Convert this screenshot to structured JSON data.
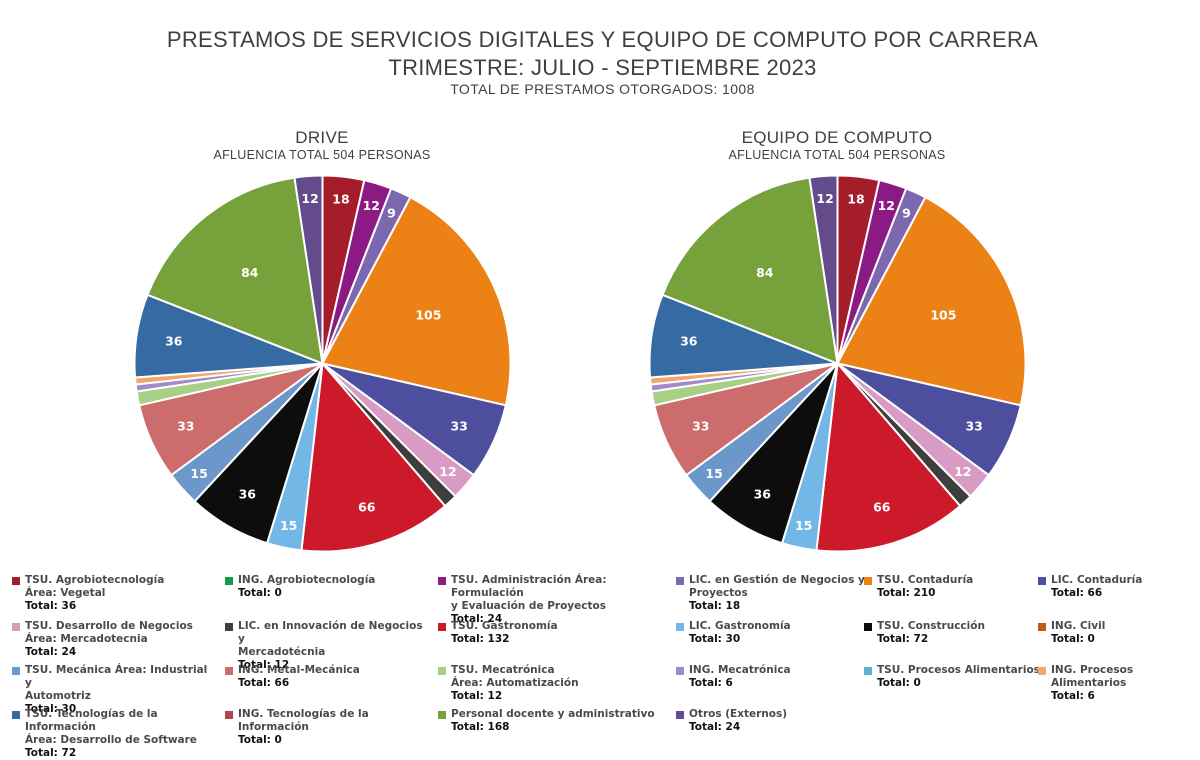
{
  "title": {
    "line1": "PRESTAMOS DE SERVICIOS DIGITALES Y EQUIPO DE COMPUTO POR CARRERA",
    "line2": "TRIMESTRE: JULIO - SEPTIEMBRE 2023",
    "line3": "TOTAL DE PRESTAMOS OTORGADOS: 1008"
  },
  "chart_data": [
    {
      "type": "pie",
      "title": "DRIVE",
      "subtitle": "AFLUENCIA TOTAL 504 PERSONAS",
      "slices": [
        {
          "label": "TSU.  Agrobiotecnología Área: Vegetal",
          "value": 18,
          "display": "18",
          "color": "#a51c2b"
        },
        {
          "label": "TSU. Administración Área: Formulación y Evaluación de Proyectos",
          "value": 12,
          "display": "12",
          "color": "#8b1a85"
        },
        {
          "label": "LIC. en Gestión de Negocios y Proyectos",
          "value": 9,
          "display": "9",
          "color": "#7c68ae"
        },
        {
          "label": "TSU. Contaduría",
          "value": 105,
          "display": "105",
          "color": "#ec8216"
        },
        {
          "label": "LIC. Contaduría",
          "value": 33,
          "display": "33",
          "color": "#4e4e9e"
        },
        {
          "label": "TSU. Desarrollo de Negocios Área: Mercadotecnia",
          "value": 12,
          "display": "12",
          "color": "#d89cc4"
        },
        {
          "label": "LIC. en Innovación de Negocios y Mercadotécnia",
          "value": 6,
          "display": "",
          "color": "#3e3e3e"
        },
        {
          "label": "TSU. Gastronomía",
          "value": 66,
          "display": "66",
          "color": "#cc1a2a"
        },
        {
          "label": "LIC. Gastronomía",
          "value": 15,
          "display": "15",
          "color": "#72b7e6"
        },
        {
          "label": "TSU. Construcción",
          "value": 36,
          "display": "36",
          "color": "#0d0d0d"
        },
        {
          "label": "TSU. Mecánica Área: Industrial y Automotriz",
          "value": 15,
          "display": "15",
          "color": "#6b97cb"
        },
        {
          "label": "ING. Metal-Mecánica",
          "value": 33,
          "display": "33",
          "color": "#cc6c6c"
        },
        {
          "label": "TSU. Mecatrónica Área: Automatización",
          "value": 6,
          "display": "",
          "color": "#a8cf86"
        },
        {
          "label": "ING. Mecatrónica",
          "value": 3,
          "display": "",
          "color": "#a08ac8"
        },
        {
          "label": "ING. Procesos Alimentarios",
          "value": 3,
          "display": "",
          "color": "#f4a66a"
        },
        {
          "label": "TSU. Tecnologías de la Información Área: Desarrollo de Software",
          "value": 36,
          "display": "36",
          "color": "#366aa3"
        },
        {
          "label": "Personal docente y administrativo",
          "value": 84,
          "display": "84",
          "color": "#76a13b"
        },
        {
          "label": "Otros (Externos)",
          "value": 12,
          "display": "12",
          "color": "#634b8c"
        }
      ]
    },
    {
      "type": "pie",
      "title": "EQUIPO DE COMPUTO",
      "subtitle": "AFLUENCIA TOTAL 504 PERSONAS",
      "slices": [
        {
          "label": "TSU.  Agrobiotecnología Área: Vegetal",
          "value": 18,
          "display": "18",
          "color": "#a51c2b"
        },
        {
          "label": "TSU. Administración Área: Formulación y Evaluación de Proyectos",
          "value": 12,
          "display": "12",
          "color": "#8b1a85"
        },
        {
          "label": "LIC. en Gestión de Negocios y Proyectos",
          "value": 9,
          "display": "9",
          "color": "#7c68ae"
        },
        {
          "label": "TSU. Contaduría",
          "value": 105,
          "display": "105",
          "color": "#ec8216"
        },
        {
          "label": "LIC. Contaduría",
          "value": 33,
          "display": "33",
          "color": "#4e4e9e"
        },
        {
          "label": "TSU. Desarrollo de Negocios Área: Mercadotecnia",
          "value": 12,
          "display": "12",
          "color": "#d89cc4"
        },
        {
          "label": "LIC. en Innovación de Negocios y Mercadotécnia",
          "value": 6,
          "display": "",
          "color": "#3e3e3e"
        },
        {
          "label": "TSU. Gastronomía",
          "value": 66,
          "display": "66",
          "color": "#cc1a2a"
        },
        {
          "label": "LIC. Gastronomía",
          "value": 15,
          "display": "15",
          "color": "#72b7e6"
        },
        {
          "label": "TSU. Construcción",
          "value": 36,
          "display": "36",
          "color": "#0d0d0d"
        },
        {
          "label": "TSU. Mecánica Área: Industrial y Automotriz",
          "value": 15,
          "display": "15",
          "color": "#6b97cb"
        },
        {
          "label": "ING. Metal-Mecánica",
          "value": 33,
          "display": "33",
          "color": "#cc6c6c"
        },
        {
          "label": "TSU. Mecatrónica Área: Automatización",
          "value": 6,
          "display": "",
          "color": "#a8cf86"
        },
        {
          "label": "ING. Mecatrónica",
          "value": 3,
          "display": "",
          "color": "#a08ac8"
        },
        {
          "label": "ING. Procesos Alimentarios",
          "value": 3,
          "display": "",
          "color": "#f4a66a"
        },
        {
          "label": "TSU. Tecnologías de la Información Área: Desarrollo de Software",
          "value": 36,
          "display": "36",
          "color": "#366aa3"
        },
        {
          "label": "Personal docente y administrativo",
          "value": 84,
          "display": "84",
          "color": "#76a13b"
        },
        {
          "label": "Otros (Externos)",
          "value": 12,
          "display": "12",
          "color": "#634b8c"
        }
      ]
    }
  ],
  "legend": [
    {
      "name": "TSU.  Agrobiotecnología\nÁrea: Vegetal",
      "total": "Total: 36",
      "color": "#a51c2b"
    },
    {
      "name": "ING. Agrobiotecnología",
      "total": "Total: 0",
      "color": "#119a47"
    },
    {
      "name": "TSU. Administración Área: Formulación\ny Evaluación de Proyectos",
      "total": "Total: 24",
      "color": "#8b1a85"
    },
    {
      "name": "LIC. en Gestión de Negocios y\nProyectos",
      "total": "Total: 18",
      "color": "#7c68ae"
    },
    {
      "name": "TSU. Contaduría",
      "total": "Total: 210",
      "color": "#ec8216"
    },
    {
      "name": "LIC. Contaduría",
      "total": "Total: 66",
      "color": "#4e4e9e"
    },
    {
      "name": "TSU. Desarrollo de Negocios\nÁrea: Mercadotecnia",
      "total": "Total: 24",
      "color": "#d89cc4"
    },
    {
      "name": "LIC. en Innovación de Negocios y\nMercadotécnia",
      "total": "Total: 12",
      "color": "#3e3e3e"
    },
    {
      "name": "TSU. Gastronomía",
      "total": "Total: 132",
      "color": "#cc1a2a"
    },
    {
      "name": "LIC. Gastronomía",
      "total": "Total: 30",
      "color": "#72b7e6"
    },
    {
      "name": "TSU. Construcción",
      "total": "Total: 72",
      "color": "#0d0d0d"
    },
    {
      "name": "ING. Civil",
      "total": "Total: 0",
      "color": "#c55a11"
    },
    {
      "name": "TSU. Mecánica Área: Industrial y\nAutomotriz",
      "total": "Total: 30",
      "color": "#6b97cb"
    },
    {
      "name": "ING. Metal-Mecánica",
      "total": "Total: 66",
      "color": "#cc6c6c"
    },
    {
      "name": "TSU. Mecatrónica\nÁrea: Automatización",
      "total": "Total: 12",
      "color": "#a8cf86"
    },
    {
      "name": "ING. Mecatrónica",
      "total": "Total:  6",
      "color": "#a08ac8"
    },
    {
      "name": "TSU. Procesos Alimentarios",
      "total": "Total: 0",
      "color": "#5bb4d0"
    },
    {
      "name": "ING. Procesos Alimentarios",
      "total": "Total: 6",
      "color": "#f4a66a"
    },
    {
      "name": "TSU. Tecnologías de la Información\nÁrea: Desarrollo de Software",
      "total": "Total: 72",
      "color": "#366aa3"
    },
    {
      "name": "ING. Tecnologías de la Información",
      "total": "Total: 0",
      "color": "#b7434d"
    },
    {
      "name": "Personal docente y administrativo",
      "total": "Total: 168",
      "color": "#76a13b"
    },
    {
      "name": "Otros (Externos)",
      "total": "Total: 24",
      "color": "#634b8c"
    }
  ]
}
